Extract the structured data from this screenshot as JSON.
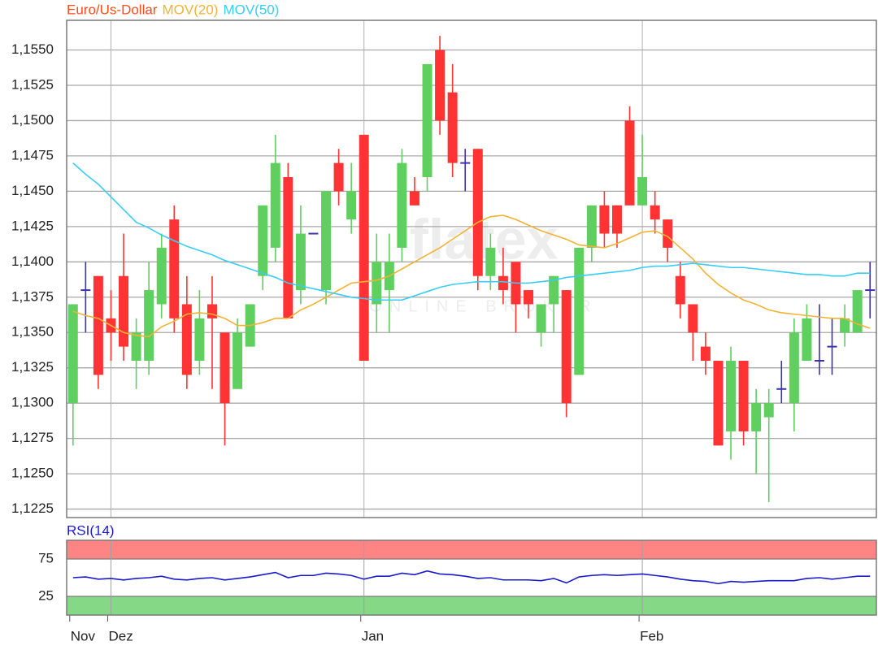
{
  "chart_data": [
    {
      "type": "candlestick",
      "watermark": "flatex",
      "watermark_subtitle": "ONLINE BROKER",
      "up_color": "#5fcf5f",
      "down_color": "#ff3333",
      "flat_color": "#3a32b0",
      "ylim": [
        1.1219,
        1.1571
      ],
      "yticks": [
        {
          "value": 1.1225,
          "label": "1,1225"
        },
        {
          "value": 1.125,
          "label": "1,1250"
        },
        {
          "value": 1.1275,
          "label": "1,1275"
        },
        {
          "value": 1.13,
          "label": "1,1300"
        },
        {
          "value": 1.1325,
          "label": "1,1325"
        },
        {
          "value": 1.135,
          "label": "1,1350"
        },
        {
          "value": 1.1375,
          "label": "1,1375"
        },
        {
          "value": 1.14,
          "label": "1,1400"
        },
        {
          "value": 1.1425,
          "label": "1,1425"
        },
        {
          "value": 1.145,
          "label": "1,1450"
        },
        {
          "value": 1.1475,
          "label": "1,1475"
        },
        {
          "value": 1.15,
          "label": "1,1500"
        },
        {
          "value": 1.1525,
          "label": "1,1525"
        },
        {
          "value": 1.155,
          "label": "1,1550"
        }
      ],
      "grid": true,
      "series": [
        {
          "name": "Euro/Us-Dollar",
          "color": "#ff4a1a",
          "open": [
            1.13,
            1.138,
            1.139,
            1.136,
            1.139,
            1.133,
            1.133,
            1.137,
            1.143,
            1.137,
            1.133,
            1.137,
            1.135,
            1.131,
            1.134,
            1.139,
            1.141,
            1.146,
            1.138,
            1.142,
            1.138,
            1.147,
            1.143,
            1.149,
            1.137,
            1.138,
            1.141,
            1.145,
            1.146,
            1.155,
            1.152,
            1.147,
            1.148,
            1.139,
            1.139,
            1.14,
            1.138,
            1.135,
            1.137,
            1.138,
            1.132,
            1.141,
            1.144,
            1.144,
            1.15,
            1.144,
            1.144,
            1.143,
            1.139,
            1.137,
            1.134,
            1.133,
            1.128,
            1.133,
            1.128,
            1.129,
            1.131,
            1.13,
            1.133,
            1.133,
            1.134,
            1.135,
            1.135,
            1.138
          ],
          "high": [
            1.137,
            1.14,
            1.139,
            1.138,
            1.142,
            1.136,
            1.14,
            1.142,
            1.144,
            1.139,
            1.138,
            1.139,
            1.135,
            1.136,
            1.137,
            1.144,
            1.149,
            1.147,
            1.144,
            1.142,
            1.145,
            1.148,
            1.147,
            1.149,
            1.142,
            1.142,
            1.148,
            1.146,
            1.154,
            1.156,
            1.154,
            1.148,
            1.148,
            1.142,
            1.141,
            1.14,
            1.138,
            1.137,
            1.139,
            1.138,
            1.141,
            1.144,
            1.145,
            1.144,
            1.151,
            1.149,
            1.145,
            1.143,
            1.14,
            1.137,
            1.135,
            1.133,
            1.134,
            1.133,
            1.131,
            1.131,
            1.133,
            1.136,
            1.137,
            1.137,
            1.136,
            1.137,
            1.138,
            1.14
          ],
          "low": [
            1.127,
            1.135,
            1.131,
            1.133,
            1.133,
            1.131,
            1.132,
            1.136,
            1.135,
            1.131,
            1.132,
            1.131,
            1.127,
            1.131,
            1.134,
            1.138,
            1.14,
            1.136,
            1.137,
            1.142,
            1.137,
            1.144,
            1.142,
            1.133,
            1.135,
            1.135,
            1.14,
            1.144,
            1.145,
            1.149,
            1.146,
            1.145,
            1.138,
            1.138,
            1.137,
            1.135,
            1.136,
            1.134,
            1.135,
            1.129,
            1.132,
            1.14,
            1.141,
            1.141,
            1.144,
            1.144,
            1.142,
            1.14,
            1.136,
            1.133,
            1.132,
            1.127,
            1.126,
            1.127,
            1.125,
            1.123,
            1.13,
            1.128,
            1.133,
            1.132,
            1.132,
            1.134,
            1.135,
            1.136
          ],
          "close": [
            1.137,
            1.138,
            1.132,
            1.135,
            1.134,
            1.135,
            1.138,
            1.141,
            1.136,
            1.132,
            1.136,
            1.136,
            1.13,
            1.135,
            1.137,
            1.144,
            1.147,
            1.136,
            1.142,
            1.142,
            1.145,
            1.145,
            1.145,
            1.133,
            1.14,
            1.14,
            1.147,
            1.144,
            1.154,
            1.15,
            1.147,
            1.147,
            1.139,
            1.141,
            1.138,
            1.137,
            1.137,
            1.137,
            1.139,
            1.13,
            1.141,
            1.144,
            1.142,
            1.142,
            1.144,
            1.146,
            1.143,
            1.141,
            1.137,
            1.135,
            1.133,
            1.127,
            1.133,
            1.128,
            1.13,
            1.13,
            1.131,
            1.135,
            1.136,
            1.133,
            1.134,
            1.136,
            1.138,
            1.138
          ]
        },
        {
          "name": "MOV(20)",
          "color": "#f2b233",
          "values": [
            1.1365,
            1.1362,
            1.136,
            1.1355,
            1.135,
            1.1348,
            1.1347,
            1.1354,
            1.1358,
            1.1363,
            1.1364,
            1.1363,
            1.136,
            1.1355,
            1.1355,
            1.1357,
            1.136,
            1.136,
            1.1366,
            1.137,
            1.1375,
            1.138,
            1.1385,
            1.1386,
            1.1387,
            1.139,
            1.1395,
            1.14,
            1.1405,
            1.141,
            1.1416,
            1.1422,
            1.1428,
            1.1432,
            1.1433,
            1.143,
            1.1426,
            1.1422,
            1.1419,
            1.1416,
            1.1412,
            1.1411,
            1.141,
            1.1413,
            1.1417,
            1.1421,
            1.1422,
            1.1418,
            1.141,
            1.1402,
            1.1392,
            1.1384,
            1.1378,
            1.1373,
            1.137,
            1.1366,
            1.1364,
            1.1363,
            1.1362,
            1.1361,
            1.136,
            1.136,
            1.1356,
            1.1353
          ]
        },
        {
          "name": "MOV(50)",
          "color": "#38cdf5",
          "values": [
            1.147,
            1.1462,
            1.1455,
            1.1446,
            1.1437,
            1.1428,
            1.1424,
            1.1419,
            1.1415,
            1.1411,
            1.1408,
            1.1405,
            1.1401,
            1.1398,
            1.1395,
            1.1392,
            1.1389,
            1.1385,
            1.1383,
            1.1381,
            1.1379,
            1.1377,
            1.1375,
            1.1374,
            1.1373,
            1.1373,
            1.1373,
            1.1376,
            1.1379,
            1.1382,
            1.1384,
            1.1385,
            1.1386,
            1.1386,
            1.1386,
            1.1385,
            1.1385,
            1.1386,
            1.1387,
            1.1389,
            1.139,
            1.1391,
            1.1392,
            1.1393,
            1.1394,
            1.1396,
            1.1397,
            1.1397,
            1.1398,
            1.1399,
            1.1398,
            1.1397,
            1.1396,
            1.1396,
            1.1395,
            1.1394,
            1.1393,
            1.1392,
            1.1391,
            1.1391,
            1.139,
            1.139,
            1.1392,
            1.1392
          ]
        }
      ]
    },
    {
      "type": "line",
      "categories": [
        "Nov",
        null,
        null,
        "Dez",
        null,
        null,
        null,
        null,
        null,
        null,
        null,
        null,
        null,
        null,
        null,
        null,
        null,
        null,
        null,
        null,
        null,
        null,
        null,
        "Jan",
        null,
        null,
        null,
        null,
        null,
        null,
        null,
        null,
        null,
        null,
        null,
        null,
        null,
        null,
        null,
        null,
        null,
        null,
        null,
        null,
        null,
        "Feb",
        null,
        null,
        null,
        null,
        null,
        null,
        null,
        null,
        null,
        null,
        null,
        null,
        null,
        null,
        null,
        null,
        null,
        null
      ],
      "ylim": [
        0,
        100
      ],
      "yticks": [
        25,
        75
      ],
      "bands": [
        {
          "from": 75,
          "to": 100,
          "color": "#ff8585"
        },
        {
          "from": 0,
          "to": 25,
          "color": "#85d885"
        }
      ],
      "series": [
        {
          "name": "RSI(14)",
          "color": "#1a1acc",
          "values": [
            50,
            51,
            48,
            49,
            47,
            49,
            50,
            52,
            48,
            47,
            49,
            50,
            47,
            49,
            51,
            54,
            57,
            50,
            53,
            53,
            56,
            55,
            53,
            48,
            52,
            52,
            56,
            54,
            59,
            55,
            54,
            52,
            49,
            50,
            47,
            47,
            47,
            46,
            49,
            43,
            51,
            53,
            54,
            53,
            54,
            55,
            53,
            51,
            48,
            46,
            45,
            42,
            45,
            44,
            45,
            46,
            46,
            46,
            49,
            50,
            48,
            50,
            52,
            52
          ]
        }
      ]
    }
  ]
}
